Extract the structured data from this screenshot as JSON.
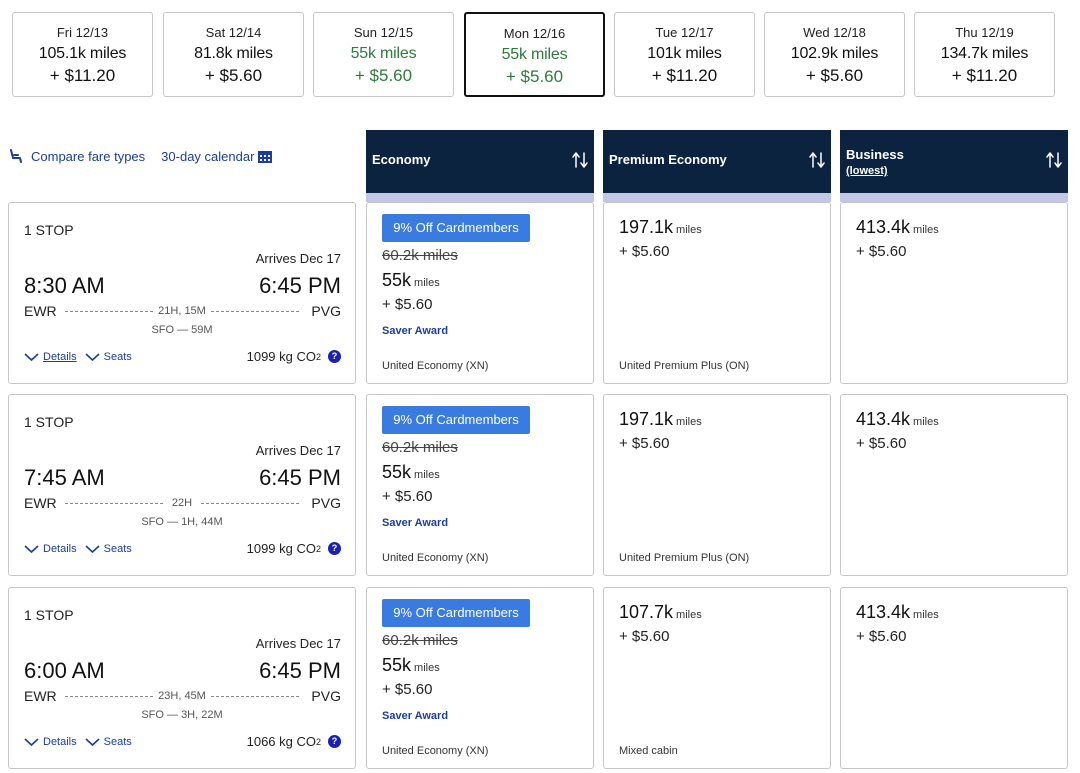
{
  "dates": [
    {
      "label": "Fri 12/13",
      "miles": "105.1k miles",
      "tax": "+ $11.20",
      "selected": false,
      "green": false
    },
    {
      "label": "Sat 12/14",
      "miles": "81.8k miles",
      "tax": "+ $5.60",
      "selected": false,
      "green": false
    },
    {
      "label": "Sun 12/15",
      "miles": "55k miles",
      "tax": "+ $5.60",
      "selected": false,
      "green": true
    },
    {
      "label": "Mon 12/16",
      "miles": "55k miles",
      "tax": "+ $5.60",
      "selected": true,
      "green": true
    },
    {
      "label": "Tue 12/17",
      "miles": "101k miles",
      "tax": "+ $11.20",
      "selected": false,
      "green": false
    },
    {
      "label": "Wed 12/18",
      "miles": "102.9k miles",
      "tax": "+ $5.60",
      "selected": false,
      "green": false
    },
    {
      "label": "Thu 12/19",
      "miles": "134.7k miles",
      "tax": "+ $11.20",
      "selected": false,
      "green": false
    }
  ],
  "tools": {
    "compare": "Compare fare types",
    "calendar": "30-day calendar"
  },
  "columns": {
    "economy": {
      "title": "Economy"
    },
    "premium": {
      "title": "Premium Economy"
    },
    "business": {
      "title": "Business",
      "sub": "(lowest)"
    }
  },
  "colors": {
    "header_bg": "#0c2340",
    "header_band": "#c3c6e8",
    "badge": "#3a7be0",
    "green": "#2e7a3a",
    "link": "#1a3d9e"
  },
  "flights": [
    {
      "stops": "1 STOP",
      "arrives": "Arrives Dec 17",
      "dep_time": "8:30 AM",
      "arr_time": "6:45 PM",
      "from": "EWR",
      "to": "PVG",
      "duration": "21H, 15M",
      "layover": "SFO — 59M",
      "details": "Details",
      "seats": "Seats",
      "co2": "1099 kg CO",
      "co2_sub": "2",
      "economy": {
        "badge": "9% Off Cardmembers",
        "strike": "60.2k miles",
        "miles": "55k",
        "unit": "miles",
        "tax": "+ $5.60",
        "saver": "Saver Award",
        "cabin": "United Economy (XN)"
      },
      "premium": {
        "miles": "197.1k",
        "unit": "miles",
        "tax": "+ $5.60",
        "cabin": "United Premium Plus (ON)"
      },
      "business": {
        "miles": "413.4k",
        "unit": "miles",
        "tax": "+ $5.60",
        "cabin": ""
      }
    },
    {
      "stops": "1 STOP",
      "arrives": "Arrives Dec 17",
      "dep_time": "7:45 AM",
      "arr_time": "6:45 PM",
      "from": "EWR",
      "to": "PVG",
      "duration": "22H",
      "layover": "SFO — 1H, 44M",
      "details": "Details",
      "seats": "Seats",
      "co2": "1099 kg CO",
      "co2_sub": "2",
      "economy": {
        "badge": "9% Off Cardmembers",
        "strike": "60.2k miles",
        "miles": "55k",
        "unit": "miles",
        "tax": "+ $5.60",
        "saver": "Saver Award",
        "cabin": "United Economy (XN)"
      },
      "premium": {
        "miles": "197.1k",
        "unit": "miles",
        "tax": "+ $5.60",
        "cabin": "United Premium Plus (ON)"
      },
      "business": {
        "miles": "413.4k",
        "unit": "miles",
        "tax": "+ $5.60",
        "cabin": ""
      }
    },
    {
      "stops": "1 STOP",
      "arrives": "Arrives Dec 17",
      "dep_time": "6:00 AM",
      "arr_time": "6:45 PM",
      "from": "EWR",
      "to": "PVG",
      "duration": "23H, 45M",
      "layover": "SFO — 3H, 22M",
      "details": "Details",
      "seats": "Seats",
      "co2": "1066 kg CO",
      "co2_sub": "2",
      "economy": {
        "badge": "9% Off Cardmembers",
        "strike": "60.2k miles",
        "miles": "55k",
        "unit": "miles",
        "tax": "+ $5.60",
        "saver": "Saver Award",
        "cabin": "United Economy (XN)"
      },
      "premium": {
        "miles": "107.7k",
        "unit": "miles",
        "tax": "+ $5.60",
        "cabin": "Mixed cabin"
      },
      "business": {
        "miles": "413.4k",
        "unit": "miles",
        "tax": "+ $5.60",
        "cabin": ""
      }
    }
  ]
}
